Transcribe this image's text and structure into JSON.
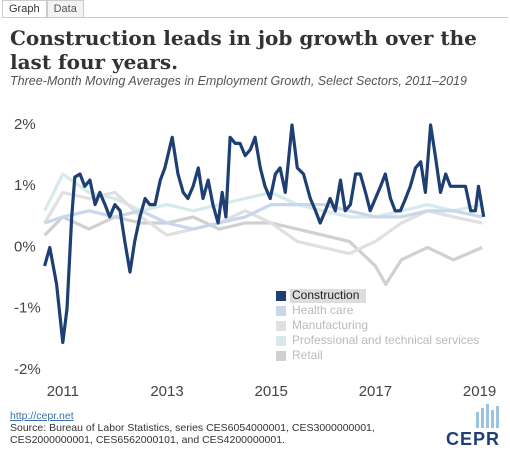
{
  "tabs": [
    "Graph",
    "Data"
  ],
  "chart_data": {
    "type": "line",
    "title": "Construction leads in job growth over the last four years.",
    "subtitle": "Three-Month Moving Averages in Employment Growth, Select Sectors, 2011–2019",
    "xlim": [
      2010.6,
      2019.2
    ],
    "xticks": [
      2011,
      2013,
      2015,
      2017,
      2019
    ],
    "ylim": [
      -2.2,
      2.2
    ],
    "yticks": [
      {
        "value": 2,
        "label": "2%"
      },
      {
        "value": 1,
        "label": "1%"
      },
      {
        "value": 0,
        "label": "0%"
      },
      {
        "value": -1,
        "label": "-1%"
      },
      {
        "value": -2,
        "label": "-2%"
      }
    ],
    "grid": false,
    "legend": "lower-right",
    "series": [
      {
        "name": "Retail",
        "color": "#d0d0d0",
        "x": [
          2010.65,
          2011.0,
          2011.5,
          2012.0,
          2012.5,
          2013.0,
          2013.5,
          2014.0,
          2014.5,
          2015.0,
          2015.5,
          2016.0,
          2016.5,
          2017.0,
          2017.2,
          2017.5,
          2018.0,
          2018.5,
          2019.05
        ],
        "values": [
          0.2,
          0.5,
          0.3,
          0.5,
          0.4,
          0.4,
          0.5,
          0.3,
          0.4,
          0.4,
          0.3,
          0.2,
          0.1,
          -0.3,
          -0.6,
          -0.2,
          0.0,
          -0.2,
          0.0
        ]
      },
      {
        "name": "Professional and technical services",
        "color": "#d6eaec",
        "x": [
          2010.65,
          2011.0,
          2011.5,
          2012.0,
          2012.5,
          2013.0,
          2013.5,
          2014.0,
          2014.5,
          2015.0,
          2015.5,
          2016.0,
          2016.5,
          2017.0,
          2017.5,
          2018.0,
          2018.5,
          2019.05
        ],
        "values": [
          0.6,
          1.2,
          0.9,
          0.8,
          0.6,
          0.7,
          0.6,
          0.7,
          0.8,
          0.9,
          0.7,
          0.6,
          0.5,
          0.5,
          0.6,
          0.7,
          0.6,
          0.7
        ]
      },
      {
        "name": "Manufacturing",
        "color": "#e0e0e0",
        "x": [
          2010.65,
          2011.0,
          2011.5,
          2012.0,
          2012.5,
          2013.0,
          2013.5,
          2014.0,
          2014.5,
          2015.0,
          2015.5,
          2016.0,
          2016.5,
          2017.0,
          2017.5,
          2018.0,
          2018.5,
          2019.05
        ],
        "values": [
          0.4,
          0.9,
          0.8,
          0.9,
          0.5,
          0.2,
          0.3,
          0.4,
          0.6,
          0.4,
          0.1,
          0.0,
          -0.1,
          0.1,
          0.4,
          0.6,
          0.5,
          0.4
        ]
      },
      {
        "name": "Health care",
        "color": "#c8d7ec",
        "x": [
          2010.65,
          2011.0,
          2011.5,
          2012.0,
          2012.5,
          2013.0,
          2013.5,
          2014.0,
          2014.5,
          2015.0,
          2015.5,
          2016.0,
          2016.5,
          2017.0,
          2017.5,
          2018.0,
          2018.5,
          2019.05
        ],
        "values": [
          0.4,
          0.5,
          0.6,
          0.5,
          0.6,
          0.4,
          0.3,
          0.4,
          0.5,
          0.7,
          0.7,
          0.7,
          0.6,
          0.5,
          0.5,
          0.6,
          0.6,
          0.5
        ]
      },
      {
        "name": "Construction",
        "color": "#1e3f73",
        "x": [
          2010.65,
          2010.75,
          2010.88,
          2011.0,
          2011.08,
          2011.17,
          2011.23,
          2011.33,
          2011.42,
          2011.52,
          2011.62,
          2011.71,
          2011.81,
          2011.9,
          2012.0,
          2012.1,
          2012.19,
          2012.29,
          2012.38,
          2012.48,
          2012.58,
          2012.67,
          2012.77,
          2012.87,
          2012.96,
          2013.1,
          2013.21,
          2013.31,
          2013.4,
          2013.5,
          2013.6,
          2013.69,
          2013.79,
          2013.88,
          2013.98,
          2014.06,
          2014.13,
          2014.21,
          2014.31,
          2014.4,
          2014.5,
          2014.6,
          2014.69,
          2014.79,
          2014.88,
          2014.98,
          2015.08,
          2015.17,
          2015.27,
          2015.4,
          2015.5,
          2015.62,
          2015.75,
          2015.85,
          2015.94,
          2016.04,
          2016.13,
          2016.23,
          2016.33,
          2016.42,
          2016.52,
          2016.62,
          2016.71,
          2016.81,
          2016.9,
          2017.0,
          2017.1,
          2017.19,
          2017.29,
          2017.38,
          2017.48,
          2017.58,
          2017.67,
          2017.77,
          2017.87,
          2017.96,
          2018.06,
          2018.15,
          2018.25,
          2018.35,
          2018.44,
          2018.63,
          2018.73,
          2018.83,
          2018.92,
          2018.98,
          2019.08
        ],
        "values": [
          -0.3,
          0.0,
          -0.6,
          -1.55,
          -1.0,
          0.5,
          1.15,
          1.2,
          1.0,
          1.1,
          0.7,
          0.9,
          0.7,
          0.5,
          0.7,
          0.6,
          0.1,
          -0.4,
          0.1,
          0.5,
          0.8,
          0.7,
          0.7,
          1.1,
          1.3,
          1.8,
          1.2,
          0.9,
          0.8,
          1.0,
          1.3,
          0.8,
          1.1,
          0.7,
          0.4,
          0.9,
          0.5,
          1.8,
          1.7,
          1.7,
          1.5,
          1.6,
          1.8,
          1.3,
          1.0,
          0.8,
          1.2,
          1.3,
          0.9,
          2.0,
          1.3,
          1.2,
          0.8,
          0.6,
          0.4,
          0.6,
          0.8,
          0.6,
          1.1,
          0.6,
          0.7,
          1.2,
          1.2,
          0.9,
          0.6,
          0.8,
          1.0,
          1.2,
          0.8,
          0.6,
          0.6,
          0.8,
          1.0,
          1.3,
          1.4,
          0.9,
          2.0,
          1.5,
          0.9,
          1.2,
          1.0,
          1.0,
          1.0,
          0.6,
          0.6,
          1.0,
          0.5
        ]
      }
    ]
  },
  "footer": {
    "link": "http://cepr.net",
    "source_lines": [
      "Source: Bureau of Labor Statistics, series CES6054000001, CES3000000001,",
      "CES2000000001, CES6562000101, and CES4200000001."
    ],
    "logo": "CEPR"
  }
}
